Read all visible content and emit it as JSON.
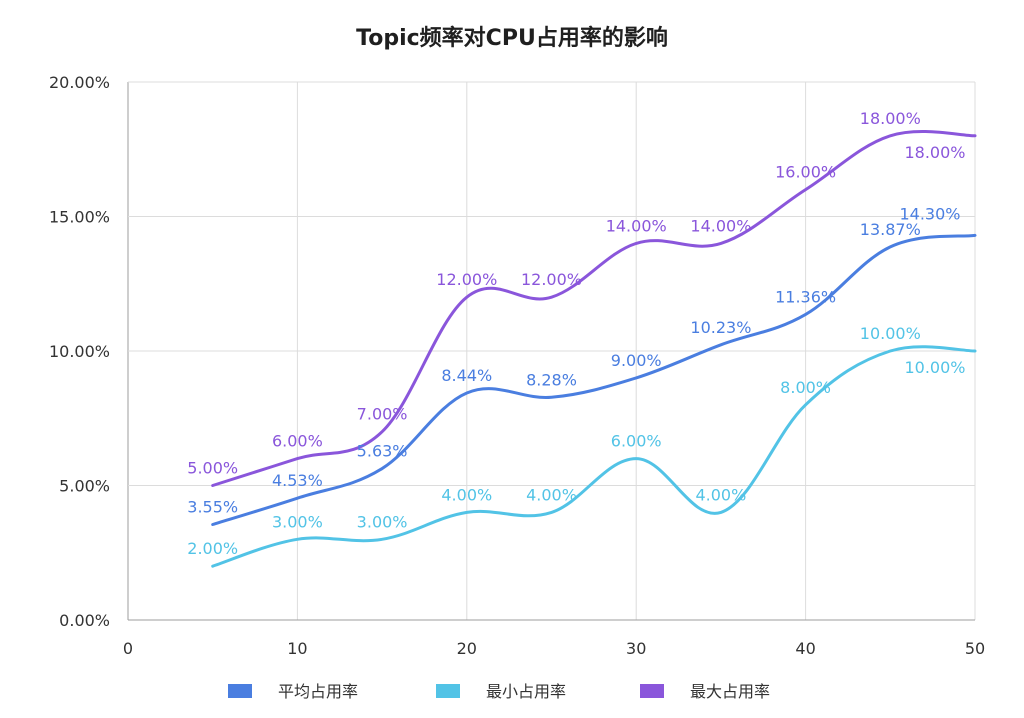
{
  "chart_data": {
    "type": "line",
    "title": "Topic频率对CPU占用率的影响",
    "xlabel": "",
    "ylabel": "",
    "x": [
      5,
      10,
      15,
      20,
      25,
      30,
      35,
      40,
      45,
      50
    ],
    "xlim": [
      0,
      50
    ],
    "ylim": [
      0,
      20
    ],
    "x_ticks": [
      0,
      10,
      20,
      30,
      40,
      50
    ],
    "y_ticks": [
      0,
      5,
      10,
      15,
      20
    ],
    "y_tick_labels": [
      "0.00%",
      "5.00%",
      "10.00%",
      "15.00%",
      "20.00%"
    ],
    "grid": true,
    "legend_position": "bottom",
    "series": [
      {
        "name": "平均占用率",
        "color": "#4a7ee0",
        "values": [
          3.55,
          4.53,
          5.63,
          8.44,
          8.28,
          9.0,
          10.23,
          11.36,
          13.87,
          14.3
        ],
        "labels": [
          "3.55%",
          "4.53%",
          "5.63%",
          "8.44%",
          "8.28%",
          "9.00%",
          "10.23%",
          "11.36%",
          "13.87%",
          "14.30%"
        ]
      },
      {
        "name": "最小占用率",
        "color": "#52c3e6",
        "values": [
          2.0,
          3.0,
          3.0,
          4.0,
          4.0,
          6.0,
          4.0,
          8.0,
          10.0,
          10.0
        ],
        "labels": [
          "2.00%",
          "3.00%",
          "3.00%",
          "4.00%",
          "4.00%",
          "6.00%",
          "4.00%",
          "8.00%",
          "10.00%",
          "10.00%"
        ]
      },
      {
        "name": "最大占用率",
        "color": "#8a56db",
        "values": [
          5.0,
          6.0,
          7.0,
          12.0,
          12.0,
          14.0,
          14.0,
          16.0,
          18.0,
          18.0
        ],
        "labels": [
          "5.00%",
          "6.00%",
          "7.00%",
          "12.00%",
          "12.00%",
          "14.00%",
          "14.00%",
          "16.00%",
          "18.00%",
          "18.00%"
        ]
      }
    ]
  }
}
